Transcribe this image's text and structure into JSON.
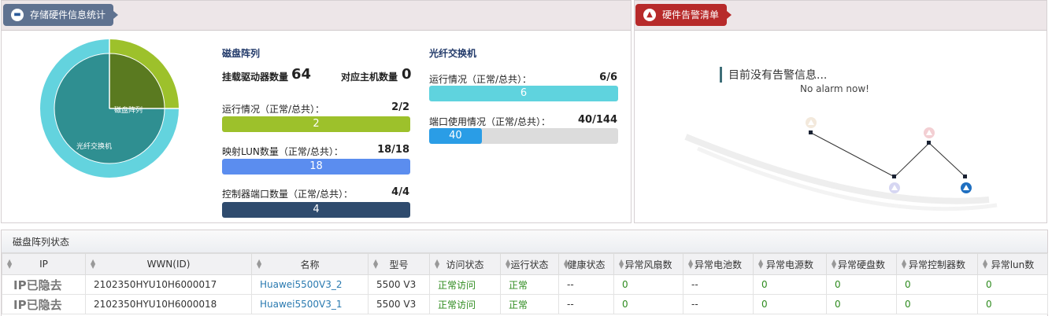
{
  "storage_panel": {
    "title": "存储硬件信息统计",
    "icon": "storage-icon",
    "pie": {
      "inner_labels": [
        "磁盘阵列",
        "光纤交换机"
      ]
    },
    "disk_array": {
      "title": "磁盘阵列",
      "drives_label": "挂载驱动器数量",
      "drives_value": "64",
      "hosts_label": "对应主机数量",
      "hosts_value": "0",
      "running_label": "运行情况（正常/总共）：",
      "running_value": "2/2",
      "running_bar": "2",
      "running_fraction": 1,
      "running_color": "#9dc12b",
      "lun_label": "映射LUN数量（正常/总共）：",
      "lun_value": "18/18",
      "lun_bar": "18",
      "lun_fraction": 1,
      "lun_color": "#5b8def",
      "ctrl_label": "控制器端口数量（正常/总共）：",
      "ctrl_value": "4/4",
      "ctrl_bar": "4",
      "ctrl_fraction": 1,
      "ctrl_color": "#2f4b6e"
    },
    "fc_switch": {
      "title": "光纤交换机",
      "running_label": "运行情况（正常/总共）：",
      "running_value": "6/6",
      "running_bar": "6",
      "running_fraction": 1,
      "running_color": "#5fd3de",
      "port_label": "端口使用情况（正常/总共）：",
      "port_value": "40/144",
      "port_bar": "40",
      "port_fraction": 0.278,
      "port_color": "#2a9de6"
    }
  },
  "alarm_panel": {
    "title": "硬件告警清单",
    "icon": "alarm-icon",
    "message": "目前没有告警信息...",
    "message_en": "No alarm now!"
  },
  "status_table": {
    "title": "磁盘阵列状态",
    "columns": [
      "IP",
      "WWN(ID)",
      "名称",
      "型号",
      "访问状态",
      "运行状态",
      "健康状态",
      "异常风扇数",
      "异常电池数",
      "异常电源数",
      "异常硬盘数",
      "异常控制器数",
      "异常lun数"
    ],
    "rows": [
      [
        "IP已隐去",
        "2102350HYU10H6000017",
        "Huawei5500V3_2",
        "5500 V3",
        "正常访问",
        "正常",
        "--",
        "0",
        "--",
        "0",
        "0",
        "0",
        "0"
      ],
      [
        "IP已隐去",
        "2102350HYU10H6000018",
        "Huawei5500V3_1",
        "5500 V3",
        "正常访问",
        "正常",
        "--",
        "0",
        "--",
        "0",
        "0",
        "0",
        "0"
      ]
    ]
  }
}
